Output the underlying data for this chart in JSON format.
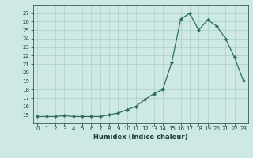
{
  "x": [
    0,
    1,
    2,
    3,
    4,
    5,
    6,
    7,
    8,
    9,
    10,
    11,
    12,
    13,
    14,
    15,
    16,
    17,
    18,
    19,
    20,
    21,
    22,
    23
  ],
  "y": [
    14.8,
    14.8,
    14.8,
    14.9,
    14.8,
    14.8,
    14.8,
    14.8,
    15.0,
    15.2,
    15.6,
    16.0,
    16.8,
    17.5,
    18.0,
    21.2,
    26.3,
    27.0,
    25.0,
    26.2,
    25.5,
    24.0,
    21.8,
    19.0
  ],
  "xlabel": "Humidex (Indice chaleur)",
  "ylim": [
    14,
    28
  ],
  "xlim": [
    -0.5,
    23.5
  ],
  "yticks": [
    15,
    16,
    17,
    18,
    19,
    20,
    21,
    22,
    23,
    24,
    25,
    26,
    27
  ],
  "xticks": [
    0,
    1,
    2,
    3,
    4,
    5,
    6,
    7,
    8,
    9,
    10,
    11,
    12,
    13,
    14,
    15,
    16,
    17,
    18,
    19,
    20,
    21,
    22,
    23
  ],
  "line_color": "#2d6e5e",
  "bg_color": "#cde8e5",
  "grid_color": "#aacfcc",
  "text_color": "#1a3d38"
}
